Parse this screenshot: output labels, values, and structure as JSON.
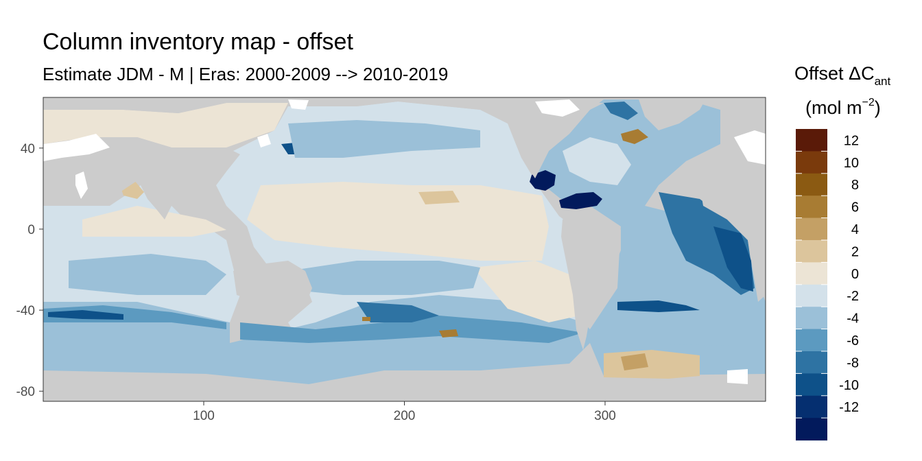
{
  "chart_data": {
    "type": "heatmap",
    "title": "Column inventory map - offset",
    "subtitle": "Estimate JDM - M | Eras: 2000-2009 --> 2010-2019",
    "xlabel": "",
    "ylabel": "",
    "xlim": [
      20,
      380
    ],
    "ylim": [
      -85,
      65
    ],
    "x_ticks": [
      100,
      200,
      300
    ],
    "y_ticks": [
      40,
      0,
      -40,
      -80
    ],
    "land_color": "#cccccc",
    "grid": false,
    "legend": {
      "position": "right",
      "title_main": "Offset ΔC",
      "title_sub": "ant",
      "title_unit_prefix": "(mol m",
      "title_unit_sup": "−2",
      "title_unit_suffix": ")",
      "bins": [
        {
          "label": "12",
          "color": "#5a1a08"
        },
        {
          "label": "10",
          "color": "#7a3a0c"
        },
        {
          "label": "8",
          "color": "#8b5a12"
        },
        {
          "label": "6",
          "color": "#a87c33"
        },
        {
          "label": "4",
          "color": "#c4a065"
        },
        {
          "label": "2",
          "color": "#dcc59c"
        },
        {
          "label": "0",
          "color": "#ece4d5"
        },
        {
          "label": "-2",
          "color": "#d3e1ea"
        },
        {
          "label": "-4",
          "color": "#9bc0d8"
        },
        {
          "label": "-6",
          "color": "#5c9ac0"
        },
        {
          "label": "-8",
          "color": "#2e73a3"
        },
        {
          "label": "-10",
          "color": "#0e5189"
        },
        {
          "label": "-12",
          "color": "#052f70"
        },
        {
          "label": "",
          "color": "#021a5c"
        }
      ]
    }
  }
}
